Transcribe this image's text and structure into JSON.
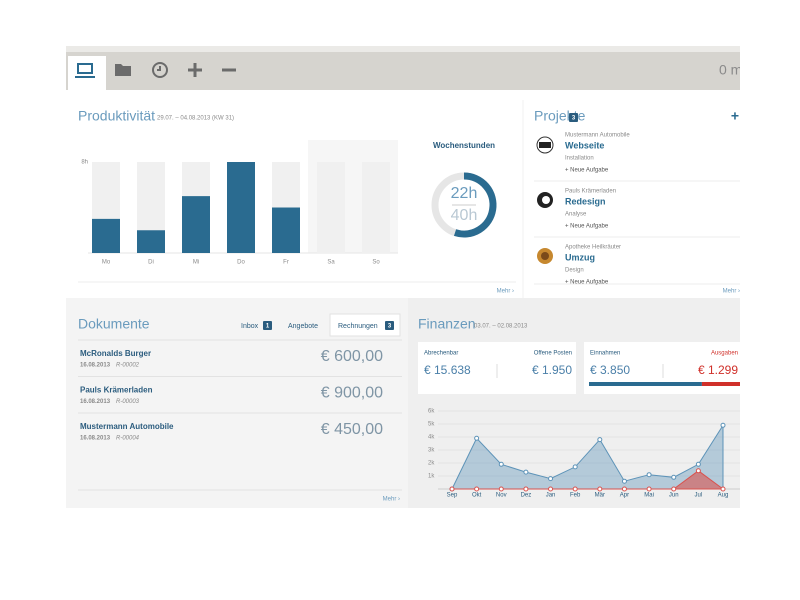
{
  "toolbar": {
    "status": "0 m"
  },
  "productivity": {
    "title": "Produktivität",
    "period": "29.07. – 04.08.2013 (KW 31)",
    "more": "Mehr ›",
    "chart": {
      "type": "bar",
      "categories": [
        "Mo",
        "Di",
        "Mi",
        "Do",
        "Fr",
        "Sa",
        "So"
      ],
      "values": [
        3,
        2,
        5,
        8,
        4,
        0,
        0
      ],
      "color": "#2a6b90",
      "ylim": [
        0,
        8
      ],
      "yticks": [
        {
          "value": 8,
          "label": "8h"
        }
      ]
    }
  },
  "weekly_hours": {
    "title": "Wochenstunden",
    "value": 22,
    "value_label": "22h",
    "total": 40,
    "total_label": "40h",
    "color": "#2a6b90"
  },
  "projects": {
    "title": "Projekte",
    "count": "3",
    "add": "+",
    "more": "Mehr ›",
    "items": [
      {
        "client": "Mustermann Automobile",
        "name": "Webseite",
        "phase": "Installation",
        "action": "+ Neue Aufgabe"
      },
      {
        "client": "Pauls Krämerladen",
        "name": "Redesign",
        "phase": "Analyse",
        "action": "+ Neue Aufgabe"
      },
      {
        "client": "Apotheke Heilkräuter",
        "name": "Umzug",
        "phase": "Design",
        "action": "+ Neue Aufgabe"
      }
    ]
  },
  "documents": {
    "title": "Dokumente",
    "more": "Mehr ›",
    "tabs": [
      {
        "label": "Inbox",
        "count": "1"
      },
      {
        "label": "Angebote"
      },
      {
        "label": "Rechnungen",
        "count": "3"
      }
    ],
    "rows": [
      {
        "name": "McRonalds Burger",
        "date": "16.08.2013",
        "number": "R-00002",
        "amount": "€ 600,00"
      },
      {
        "name": "Pauls Krämerladen",
        "date": "16.08.2013",
        "number": "R-00003",
        "amount": "€ 900,00"
      },
      {
        "name": "Mustermann Automobile",
        "date": "16.08.2013",
        "number": "R-00004",
        "amount": "€ 450,00"
      }
    ]
  },
  "finance": {
    "title": "Finanzen",
    "period": "03.07. – 02.08.2013",
    "cards": {
      "billable_label": "Abrechenbar",
      "billable": "€ 15.638",
      "open_label": "Offene Posten",
      "open": "€ 1.950",
      "income_label": "Einnahmen",
      "income": {
        "value": 3850,
        "label": "€ 3.850"
      },
      "expenses_label": "Ausgaben",
      "expenses": {
        "value": 1299,
        "label": "€ 1.299"
      }
    },
    "chart": {
      "type": "area",
      "categories": [
        "Sep",
        "Okt",
        "Nov",
        "Dez",
        "Jan",
        "Feb",
        "Mär",
        "Apr",
        "Mai",
        "Jun",
        "Jul",
        "Aug"
      ],
      "series": [
        {
          "color": "#5d93b8",
          "values": [
            0,
            3900,
            1900,
            1300,
            800,
            1700,
            3800,
            600,
            1100,
            900,
            1900,
            4900
          ]
        },
        {
          "color": "#d9534f",
          "values": [
            0,
            0,
            0,
            0,
            0,
            0,
            0,
            0,
            0,
            0,
            1400,
            0
          ]
        }
      ],
      "ylim": [
        0,
        6000
      ],
      "yticks": [
        {
          "value": 1000,
          "label": "1k"
        },
        {
          "value": 2000,
          "label": "2k"
        },
        {
          "value": 3000,
          "label": "3k"
        },
        {
          "value": 4000,
          "label": "4k"
        },
        {
          "value": 5000,
          "label": "5k"
        },
        {
          "value": 6000,
          "label": "6k"
        }
      ]
    }
  }
}
